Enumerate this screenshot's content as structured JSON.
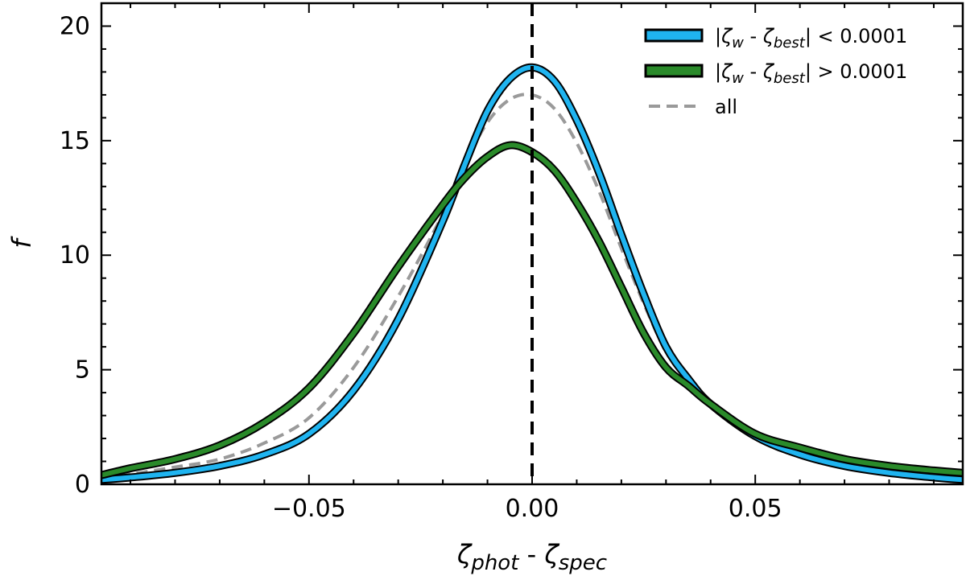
{
  "chart_data": {
    "type": "line",
    "title": "",
    "xlabel_parts": [
      {
        "text": "ζ",
        "style": "normal"
      },
      {
        "text": "phot",
        "style": "sub"
      },
      {
        "text": " - ",
        "style": "plain"
      },
      {
        "text": "ζ",
        "style": "normal"
      },
      {
        "text": "spec",
        "style": "sub"
      }
    ],
    "ylabel": "f",
    "xlim": [
      -0.0965,
      0.0965
    ],
    "ylim": [
      0,
      21
    ],
    "x_ticks": [
      -0.05,
      0.0,
      0.05
    ],
    "x_tick_labels": [
      "−0.05",
      "0.00",
      "0.05"
    ],
    "y_ticks": [
      0,
      5,
      10,
      15,
      20
    ],
    "y_tick_labels": [
      "0",
      "5",
      "10",
      "15",
      "20"
    ],
    "vline": {
      "x": 0.0,
      "style": "dashed",
      "color": "#000000"
    },
    "legend_position": "top-right",
    "series": [
      {
        "name": "|ζw - ζbest| < 0.0001",
        "legend_parts": [
          {
            "text": "|",
            "style": "plain"
          },
          {
            "text": "ζ",
            "style": "normal"
          },
          {
            "text": "w",
            "style": "sub"
          },
          {
            "text": " - ",
            "style": "plain"
          },
          {
            "text": "ζ",
            "style": "normal"
          },
          {
            "text": "best",
            "style": "sub"
          },
          {
            "text": "| < 0.0001",
            "style": "plain"
          }
        ],
        "color": "#1fb4f0",
        "outline": "#000000",
        "style": "solid-outlined",
        "x": [
          -0.0965,
          -0.09,
          -0.08,
          -0.07,
          -0.06,
          -0.05,
          -0.04,
          -0.03,
          -0.02,
          -0.015,
          -0.01,
          -0.005,
          0.0,
          0.005,
          0.01,
          0.015,
          0.02,
          0.025,
          0.03,
          0.035,
          0.04,
          0.05,
          0.06,
          0.07,
          0.08,
          0.09,
          0.0965
        ],
        "y": [
          0.2,
          0.3,
          0.5,
          0.8,
          1.3,
          2.2,
          4.1,
          7.2,
          11.5,
          14.0,
          16.3,
          17.7,
          18.2,
          17.6,
          15.9,
          13.6,
          10.9,
          8.3,
          6.0,
          4.6,
          3.5,
          2.1,
          1.3,
          0.8,
          0.5,
          0.3,
          0.2
        ]
      },
      {
        "name": "|ζw - ζbest| > 0.0001",
        "legend_parts": [
          {
            "text": "|",
            "style": "plain"
          },
          {
            "text": "ζ",
            "style": "normal"
          },
          {
            "text": "w",
            "style": "sub"
          },
          {
            "text": " - ",
            "style": "plain"
          },
          {
            "text": "ζ",
            "style": "normal"
          },
          {
            "text": "best",
            "style": "sub"
          },
          {
            "text": "| > 0.0001",
            "style": "plain"
          }
        ],
        "color": "#2a8a2a",
        "outline": "#000000",
        "style": "solid-outlined",
        "x": [
          -0.0965,
          -0.09,
          -0.08,
          -0.07,
          -0.06,
          -0.05,
          -0.04,
          -0.03,
          -0.02,
          -0.015,
          -0.01,
          -0.005,
          0.0,
          0.005,
          0.01,
          0.015,
          0.02,
          0.025,
          0.03,
          0.035,
          0.04,
          0.05,
          0.06,
          0.07,
          0.08,
          0.09,
          0.0965
        ],
        "y": [
          0.4,
          0.7,
          1.1,
          1.7,
          2.7,
          4.2,
          6.6,
          9.5,
          12.2,
          13.4,
          14.3,
          14.8,
          14.5,
          13.7,
          12.3,
          10.6,
          8.6,
          6.6,
          5.1,
          4.3,
          3.5,
          2.2,
          1.6,
          1.1,
          0.8,
          0.6,
          0.5
        ]
      },
      {
        "name": "all",
        "legend_parts": [
          {
            "text": "all",
            "style": "plain"
          }
        ],
        "color": "#9a9a9a",
        "style": "dashed",
        "x": [
          -0.0965,
          -0.09,
          -0.08,
          -0.07,
          -0.06,
          -0.05,
          -0.04,
          -0.03,
          -0.02,
          -0.015,
          -0.01,
          -0.005,
          0.0,
          0.005,
          0.01,
          0.015,
          0.02,
          0.025,
          0.03,
          0.035,
          0.04,
          0.05,
          0.06,
          0.07,
          0.08,
          0.09,
          0.0965
        ],
        "y": [
          0.3,
          0.45,
          0.75,
          1.1,
          1.8,
          2.9,
          5.1,
          8.2,
          11.8,
          14.0,
          15.8,
          16.8,
          17.0,
          16.4,
          14.9,
          12.8,
          10.3,
          7.9,
          5.8,
          4.5,
          3.5,
          2.1,
          1.4,
          0.9,
          0.6,
          0.4,
          0.3
        ]
      }
    ]
  }
}
